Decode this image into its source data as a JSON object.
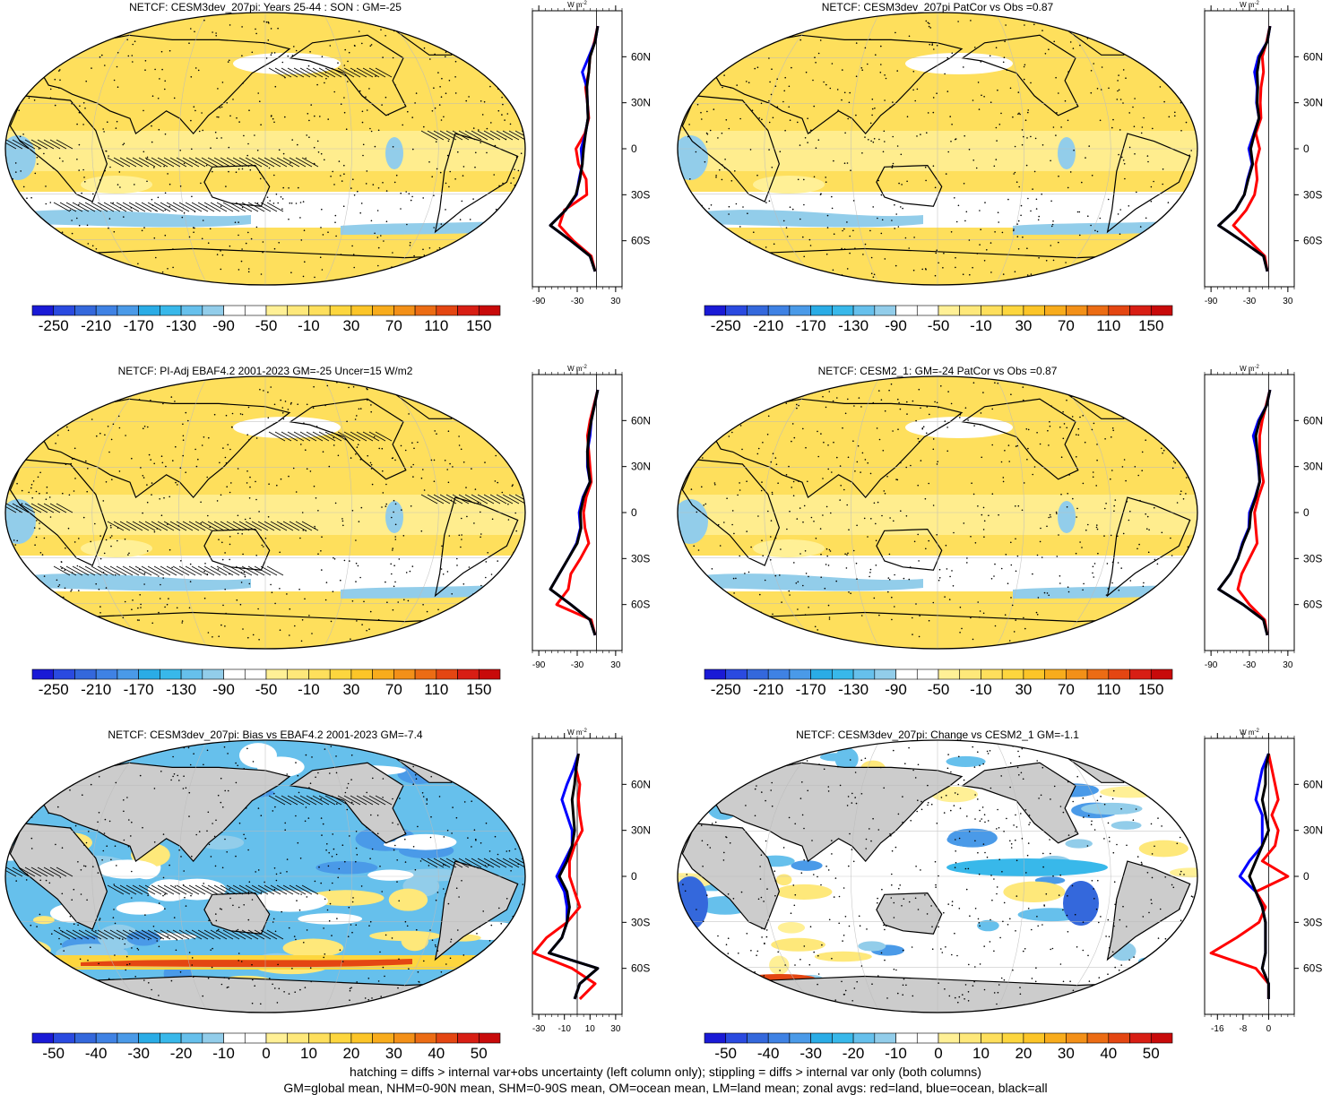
{
  "panels": [
    {
      "title": "NETCF: CESM3dev_207pi: Years 25-44 : SON : GM=-25",
      "colorbar": {
        "labels": [
          "-250",
          "-210",
          "-170",
          "-130",
          "-90",
          "-50",
          "-10",
          "30",
          "70",
          "110",
          "150"
        ],
        "scheme": "full"
      },
      "map_style": "mean",
      "hatch": true,
      "profile": {
        "xticks": [
          "-90",
          "-30",
          "30"
        ],
        "xlim": [
          -100,
          40
        ],
        "unit": "W m-2",
        "lat": [
          80,
          70,
          60,
          50,
          40,
          30,
          20,
          10,
          0,
          -10,
          -20,
          -30,
          -40,
          -50,
          -60,
          -70,
          -80
        ],
        "all": [
          2,
          -2,
          -10,
          -12,
          -15,
          -14,
          -13,
          -17,
          -20,
          -22,
          -26,
          -32,
          -48,
          -72,
          -40,
          -10,
          -2
        ],
        "land": [
          2,
          -3,
          -10,
          -12,
          -17,
          -14,
          -12,
          -18,
          -32,
          -28,
          -16,
          -15,
          -50,
          -58,
          -36,
          -8,
          -2
        ],
        "ocean": [
          2,
          -2,
          -12,
          -22,
          -15,
          -14,
          -13,
          -17,
          -24,
          -22,
          -27,
          -31,
          -48,
          -72,
          -40,
          -10,
          -2
        ]
      }
    },
    {
      "title": "NETCF: CESM3dev_207pi PatCor vs Obs =0.87",
      "colorbar": {
        "labels": [
          "-250",
          "-210",
          "-170",
          "-130",
          "-90",
          "-50",
          "-10",
          "30",
          "70",
          "110",
          "150"
        ],
        "scheme": "full"
      },
      "map_style": "mean",
      "hatch": false,
      "profile": {
        "xticks": [
          "-90",
          "-30",
          "30"
        ],
        "xlim": [
          -100,
          40
        ],
        "unit": "W m-2",
        "lat": [
          80,
          70,
          60,
          50,
          40,
          30,
          20,
          10,
          0,
          -10,
          -20,
          -30,
          -40,
          -50,
          -60,
          -70,
          -80
        ],
        "all": [
          2,
          -2,
          -14,
          -18,
          -17,
          -18,
          -15,
          -22,
          -28,
          -25,
          -32,
          -38,
          -52,
          -78,
          -42,
          -8,
          -2
        ],
        "land": [
          2,
          -3,
          -10,
          -8,
          -12,
          -13,
          -12,
          -20,
          -14,
          -20,
          -18,
          -22,
          -35,
          -55,
          -30,
          -6,
          -2
        ],
        "ocean": [
          2,
          -2,
          -16,
          -22,
          -18,
          -19,
          -15,
          -23,
          -31,
          -26,
          -33,
          -38,
          -52,
          -78,
          -42,
          -8,
          -2
        ]
      }
    },
    {
      "title": "NETCF: PI-Adj EBAF4.2 2001-2023 GM=-25 Uncer=15 W/m2",
      "colorbar": {
        "labels": [
          "-250",
          "-210",
          "-170",
          "-130",
          "-90",
          "-50",
          "-10",
          "30",
          "70",
          "110",
          "150"
        ],
        "scheme": "full"
      },
      "map_style": "mean",
      "hatch": true,
      "profile": {
        "xticks": [
          "-90",
          "-30",
          "30"
        ],
        "xlim": [
          -100,
          40
        ],
        "unit": "W m-2",
        "lat": [
          80,
          70,
          60,
          50,
          40,
          30,
          20,
          10,
          0,
          -10,
          -20,
          -30,
          -40,
          -50,
          -60,
          -70,
          -80
        ],
        "all": [
          2,
          -3,
          -8,
          -12,
          -14,
          -13,
          -10,
          -20,
          -25,
          -24,
          -30,
          -44,
          -58,
          -72,
          -40,
          -10,
          -2
        ],
        "land": [
          2,
          -4,
          -10,
          -14,
          -12,
          -10,
          -8,
          -16,
          -20,
          -18,
          -12,
          -25,
          -40,
          -44,
          -62,
          -8,
          -2
        ],
        "ocean": [
          2,
          -3,
          -8,
          -10,
          -14,
          -14,
          -10,
          -21,
          -27,
          -25,
          -31,
          -44,
          -58,
          -72,
          -40,
          -10,
          -2
        ]
      }
    },
    {
      "title": "NETCF: CESM2_1: GM=-24 PatCor vs Obs =0.87",
      "colorbar": {
        "labels": [
          "-250",
          "-210",
          "-170",
          "-130",
          "-90",
          "-50",
          "-10",
          "30",
          "70",
          "110",
          "150"
        ],
        "scheme": "full"
      },
      "map_style": "mean",
      "hatch": false,
      "profile": {
        "xticks": [
          "-90",
          "-30",
          "30"
        ],
        "xlim": [
          -100,
          40
        ],
        "unit": "W m-2",
        "lat": [
          80,
          70,
          60,
          50,
          40,
          30,
          20,
          10,
          0,
          -10,
          -20,
          -30,
          -40,
          -50,
          -60,
          -70,
          -80
        ],
        "all": [
          2,
          -3,
          -14,
          -20,
          -18,
          -15,
          -14,
          -20,
          -28,
          -30,
          -40,
          -48,
          -60,
          -78,
          -40,
          -8,
          -2
        ],
        "land": [
          2,
          -4,
          -10,
          -14,
          -14,
          -12,
          -8,
          -16,
          -22,
          -20,
          -18,
          -30,
          -42,
          -48,
          -30,
          -6,
          -2
        ],
        "ocean": [
          2,
          -3,
          -16,
          -24,
          -19,
          -16,
          -14,
          -21,
          -30,
          -31,
          -41,
          -48,
          -60,
          -78,
          -40,
          -8,
          -2
        ]
      }
    },
    {
      "title": "NETCF: CESM3dev_207pi: Bias vs EBAF4.2 2001-2023  GM=-7.4",
      "colorbar": {
        "labels": [
          "-50",
          "-40",
          "-30",
          "-20",
          "-10",
          "0",
          "10",
          "20",
          "30",
          "40",
          "50"
        ],
        "scheme": "diff"
      },
      "map_style": "bias",
      "hatch": true,
      "profile": {
        "xticks": [
          "-30",
          "-10",
          "10",
          "30"
        ],
        "xlim": [
          -35,
          35
        ],
        "unit": "W m-2",
        "lat": [
          80,
          70,
          60,
          50,
          40,
          30,
          20,
          10,
          0,
          -10,
          -20,
          -30,
          -40,
          -50,
          -60,
          -70,
          -80
        ],
        "all": [
          1,
          -1,
          -2,
          -4,
          -3,
          -2,
          -4,
          -8,
          -14,
          -8,
          -6,
          -8,
          -12,
          -22,
          16,
          2,
          -2
        ],
        "land": [
          1,
          -1,
          2,
          1,
          2,
          4,
          -2,
          -6,
          -6,
          -2,
          2,
          -8,
          -24,
          -34,
          -4,
          14,
          2
        ],
        "ocean": [
          1,
          -3,
          -8,
          -12,
          -8,
          -4,
          -4,
          -10,
          -16,
          -10,
          -8,
          -8,
          -12,
          -22,
          16,
          2,
          -2
        ]
      }
    },
    {
      "title": "NETCF: CESM3dev_207pi: Change vs CESM2_1 GM=-1.1",
      "colorbar": {
        "labels": [
          "-50",
          "-40",
          "-30",
          "-20",
          "-10",
          "0",
          "10",
          "20",
          "30",
          "40",
          "50"
        ],
        "scheme": "diff"
      },
      "map_style": "change",
      "hatch": false,
      "profile": {
        "xticks": [
          "-16",
          "-8",
          "0"
        ],
        "xlim": [
          -20,
          8
        ],
        "unit": "W m-2",
        "lat": [
          80,
          70,
          60,
          50,
          40,
          30,
          20,
          10,
          0,
          -10,
          -20,
          -30,
          -40,
          -50,
          -60,
          -70,
          -80
        ],
        "all": [
          0,
          -1,
          -1,
          -2,
          -1,
          0,
          -2,
          -4,
          -6,
          -4,
          -2,
          -1,
          -1,
          -1,
          -2,
          0,
          0
        ],
        "land": [
          0,
          1,
          2,
          3,
          1,
          3,
          2,
          -2,
          6,
          -4,
          -1,
          -3,
          -10,
          -18,
          -4,
          0,
          0
        ],
        "ocean": [
          0,
          -2,
          -3,
          -4,
          -2,
          -2,
          -2,
          -6,
          -9,
          -4,
          -2,
          -1,
          -1,
          -1,
          -2,
          0,
          0
        ]
      }
    }
  ],
  "profile_lat_labels": [
    "60N",
    "30N",
    "0",
    "30S",
    "60S"
  ],
  "unit_label": "W m",
  "unit_exp": "-2",
  "colors": {
    "full": [
      "#1a1ad6",
      "#2a4ae0",
      "#3468dc",
      "#3f82e4",
      "#4a9ae8",
      "#2aace6",
      "#38b8ea",
      "#66c0ec",
      "#92cdea",
      "#ffffff",
      "#ffffff",
      "#fff096",
      "#fee87a",
      "#fedf5c",
      "#fdd63e",
      "#fcc528",
      "#f8ac1c",
      "#f39018",
      "#ec6c14",
      "#e44612",
      "#d81e14",
      "#c80a0a"
    ],
    "diff": [
      "#1a1ad6",
      "#2a4ae0",
      "#3468dc",
      "#3f82e4",
      "#4a9ae8",
      "#2aace6",
      "#38b8ea",
      "#66c0ec",
      "#92cdea",
      "#ffffff",
      "#ffffff",
      "#fff096",
      "#fee87a",
      "#fedf5c",
      "#fdd63e",
      "#fcc528",
      "#f8ac1c",
      "#f39018",
      "#ec6c14",
      "#e44612",
      "#d81e14",
      "#c80a0a"
    ],
    "land_gray": "#cccccc",
    "map_yellow": "#fedf5c",
    "map_yellow_light": "#fff096",
    "map_blue_light": "#92cdea",
    "map_blue": "#4a9ae8",
    "profile_all": "#000000",
    "profile_land": "#ff0000",
    "profile_ocean": "#0000ff"
  },
  "footer": [
    "hatching = diffs > internal var+obs uncertainty (left column only); stippling = diffs > internal var only (both columns)",
    "GM=global mean, NHM=0-90N mean, SHM=0-90S mean, OM=ocean mean, LM=land mean; zonal avgs: red=land, blue=ocean, black=all"
  ]
}
